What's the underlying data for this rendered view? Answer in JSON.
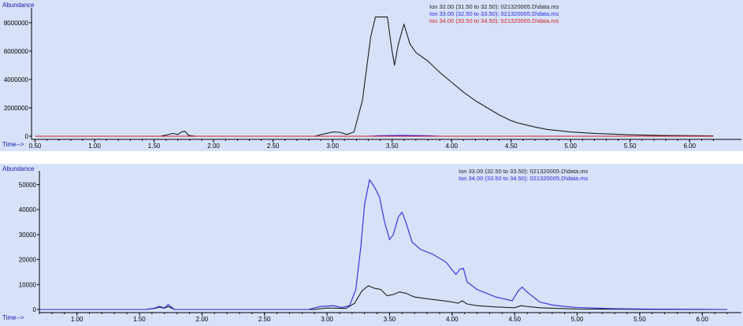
{
  "colors": {
    "plot_bg": "#d6e2f8",
    "axis": "#000000",
    "black_trace": "#1f1f1f",
    "blue_trace": "#2a2ad6",
    "red_trace": "#d42020",
    "axis_title": "#1a1aa8"
  },
  "chart_data": [
    {
      "type": "line",
      "ylabel": "Abundance",
      "xlabel": "Time-->",
      "xlim": [
        0.47,
        6.25
      ],
      "ylim": [
        0,
        8600000
      ],
      "x_ticks": [
        0.5,
        1.0,
        1.5,
        2.0,
        2.5,
        3.0,
        3.5,
        4.0,
        4.5,
        5.0,
        5.5,
        6.0
      ],
      "x_tick_labels": [
        "0.50",
        "1.00",
        "1.50",
        "2.00",
        "2.50",
        "3.00",
        "3.50",
        "4.00",
        "4.50",
        "5.00",
        "5.50",
        "6.00"
      ],
      "y_ticks": [
        0,
        2000000,
        4000000,
        6000000,
        8000000
      ],
      "y_tick_labels": [
        "0",
        "2000000",
        "4000000",
        "6000000",
        "8000000"
      ],
      "legend": "top-right",
      "grid": false,
      "series": [
        {
          "name": "Ion  32.00 (31.50 to 32.50): 021320005.D\\data.ms",
          "color": "#1f1f1f",
          "x": [
            0.5,
            1.55,
            1.6,
            1.66,
            1.7,
            1.73,
            1.76,
            1.79,
            1.85,
            2.85,
            2.92,
            3.0,
            3.06,
            3.12,
            3.18,
            3.25,
            3.32,
            3.36,
            3.46,
            3.5,
            3.52,
            3.55,
            3.6,
            3.65,
            3.7,
            3.8,
            3.9,
            4.0,
            4.1,
            4.2,
            4.3,
            4.4,
            4.5,
            4.55,
            4.6,
            4.7,
            4.8,
            5.0,
            5.2,
            5.5,
            5.8,
            6.2
          ],
          "y": [
            0,
            0,
            80000,
            200000,
            120000,
            300000,
            350000,
            60000,
            0,
            0,
            150000,
            300000,
            280000,
            120000,
            300000,
            2500000,
            7000000,
            8400000,
            8400000,
            6000000,
            5000000,
            6400000,
            7900000,
            6500000,
            5900000,
            5300000,
            4500000,
            3800000,
            3100000,
            2500000,
            2000000,
            1500000,
            1100000,
            950000,
            850000,
            650000,
            480000,
            300000,
            200000,
            100000,
            50000,
            20000
          ]
        },
        {
          "name": "Ion  33.00 (32.50 to 33.50): 021320005.D\\data.ms",
          "color": "#2a2ad6",
          "x": [
            0.5,
            3.3,
            3.4,
            3.6,
            3.8,
            3.9,
            6.2
          ],
          "y": [
            0,
            0,
            40000,
            60000,
            40000,
            0,
            0
          ]
        },
        {
          "name": "Ion  34.00 (33.50 to 34.50): 021320005.D\\data.ms",
          "color": "#d42020",
          "x": [
            0.5,
            6.2
          ],
          "y": [
            0,
            0
          ]
        }
      ]
    },
    {
      "type": "line",
      "ylabel": "Abundance",
      "xlabel": "Time-->",
      "xlim": [
        0.7,
        6.2
      ],
      "ylim": [
        0,
        53000
      ],
      "x_ticks": [
        1.0,
        1.5,
        2.0,
        2.5,
        3.0,
        3.5,
        4.0,
        4.5,
        5.0,
        5.5,
        6.0
      ],
      "x_tick_labels": [
        "1.00",
        "1.50",
        "2.00",
        "2.50",
        "3.00",
        "3.50",
        "4.00",
        "4.50",
        "5.00",
        "5.50",
        "6.00"
      ],
      "y_ticks": [
        0,
        10000,
        20000,
        30000,
        40000,
        50000
      ],
      "y_tick_labels": [
        "0",
        "10000",
        "20000",
        "30000",
        "40000",
        "50000"
      ],
      "legend": "top-right",
      "grid": false,
      "series": [
        {
          "name": "Ion  33.00 (32.50 to 33.50): 021320005.D\\data.ms",
          "color": "#1f1f1f",
          "x": [
            0.7,
            1.55,
            1.62,
            1.66,
            1.7,
            1.73,
            1.78,
            2.9,
            3.0,
            3.08,
            3.15,
            3.22,
            3.28,
            3.33,
            3.38,
            3.43,
            3.48,
            3.53,
            3.58,
            3.63,
            3.7,
            3.8,
            3.9,
            4.0,
            4.05,
            4.08,
            4.12,
            4.2,
            4.35,
            4.5,
            4.55,
            4.6,
            4.7,
            4.8,
            5.0,
            5.5,
            6.2
          ],
          "y": [
            0,
            0,
            400,
            900,
            500,
            1200,
            0,
            0,
            600,
            500,
            400,
            2500,
            7500,
            9500,
            8500,
            8000,
            5500,
            6000,
            7000,
            6500,
            5000,
            4300,
            3700,
            3000,
            2500,
            3500,
            2200,
            1500,
            1000,
            700,
            1500,
            1200,
            700,
            500,
            200,
            50,
            0
          ]
        },
        {
          "name": "Ion  34.00 (33.50 to 34.50): 021320005.D\\data.ms",
          "color": "#2a2ad6",
          "x": [
            0.7,
            1.55,
            1.62,
            1.66,
            1.7,
            1.73,
            1.78,
            2.85,
            2.95,
            3.05,
            3.12,
            3.18,
            3.23,
            3.27,
            3.3,
            3.34,
            3.38,
            3.42,
            3.46,
            3.5,
            3.53,
            3.57,
            3.6,
            3.63,
            3.68,
            3.75,
            3.85,
            3.95,
            4.03,
            4.06,
            4.09,
            4.12,
            4.2,
            4.35,
            4.48,
            4.53,
            4.56,
            4.6,
            4.7,
            4.8,
            4.9,
            5.0,
            5.3,
            5.7,
            6.2
          ],
          "y": [
            0,
            0,
            500,
            1200,
            600,
            2000,
            0,
            0,
            1200,
            1500,
            800,
            1500,
            8000,
            25000,
            42000,
            52000,
            49000,
            45000,
            35000,
            28000,
            30000,
            37000,
            39000,
            35000,
            27000,
            24000,
            22000,
            19000,
            14000,
            16000,
            16500,
            11000,
            8000,
            5000,
            3500,
            7500,
            9000,
            7000,
            3000,
            1800,
            1200,
            800,
            300,
            100,
            0
          ]
        }
      ]
    }
  ]
}
